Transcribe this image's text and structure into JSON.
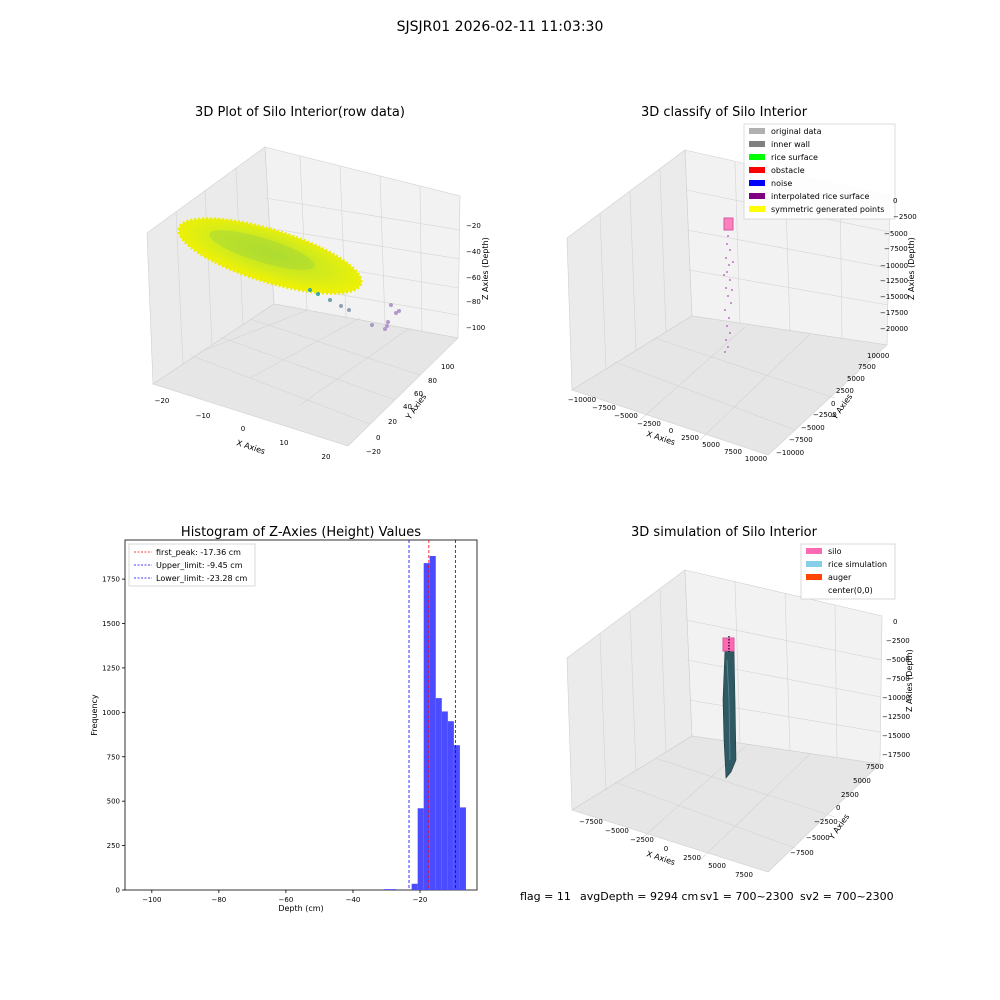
{
  "suptitle": "SJSJR01 2026-02-11 11:03:30",
  "footer": {
    "flag": "flag = 11",
    "avg": "avgDepth = 9294 cm",
    "sv1": "sv1 = 700~2300",
    "sv2": "sv2 = 700~2300"
  },
  "panels": {
    "raw": {
      "title": "3D Plot of Silo Interior(row data)",
      "xlabel": "X Axies",
      "ylabel": "Y Axies",
      "zlabel": "Z Axies (Depth)",
      "xticks": [
        "−20",
        "−10",
        "0",
        "10",
        "20"
      ],
      "yticks": [
        "−20",
        "0",
        "20",
        "40",
        "60",
        "80",
        "100"
      ],
      "zticks": [
        "−20",
        "−40",
        "−60",
        "−80",
        "−100"
      ]
    },
    "classify": {
      "title": "3D classify of Silo Interior",
      "xlabel": "X Axies",
      "ylabel": "Y Axies",
      "zlabel": "Z Axies (Depth)",
      "xticks": [
        "−10000",
        "−7500",
        "−5000",
        "−2500",
        "0",
        "2500",
        "5000",
        "7500",
        "10000"
      ],
      "yticks": [
        "−10000",
        "−7500",
        "−5000",
        "−2500",
        "0",
        "2500",
        "5000",
        "7500",
        "10000"
      ],
      "zticks": [
        "0",
        "−2500",
        "−5000",
        "−7500",
        "−10000",
        "−12500",
        "−15000",
        "−17500",
        "−20000"
      ],
      "legend": [
        {
          "label": "original data",
          "color": "#b0b0b0"
        },
        {
          "label": "inner wall",
          "color": "#808080"
        },
        {
          "label": "rice surface",
          "color": "#00ff00"
        },
        {
          "label": "obstacle",
          "color": "#ff0000"
        },
        {
          "label": "noise",
          "color": "#0000ff"
        },
        {
          "label": "interpolated rice surface",
          "color": "#800080"
        },
        {
          "label": "symmetric generated points",
          "color": "#ffff00"
        }
      ]
    },
    "histogram": {
      "title": "Histogram of Z-Axies (Height) Values",
      "xlabel": "Depth (cm)",
      "ylabel": "Frequency",
      "legend": [
        {
          "label": "first_peak: -17.36 cm",
          "color": "#ff0000"
        },
        {
          "label": "Upper_limit: -9.45 cm",
          "color": "#0000ff"
        },
        {
          "label": "Lower_limit: -23.28 cm",
          "color": "#0000ff"
        }
      ]
    },
    "simulation": {
      "title": "3D simulation of Silo Interior",
      "xlabel": "X Axies",
      "ylabel": "Y Axies",
      "zlabel": "Z Axies (Depth)",
      "xticks": [
        "−7500",
        "−5000",
        "−2500",
        "0",
        "2500",
        "5000",
        "7500"
      ],
      "yticks": [
        "−7500",
        "−5000",
        "−2500",
        "0",
        "2500",
        "5000",
        "7500"
      ],
      "zticks": [
        "0",
        "−2500",
        "−5000",
        "−7500",
        "−10000",
        "−12500",
        "−15000",
        "−17500"
      ],
      "legend": [
        {
          "label": "silo",
          "color": "#ff69b4"
        },
        {
          "label": "rice simulation",
          "color": "#87ceeb"
        },
        {
          "label": "auger",
          "color": "#ff4500"
        },
        {
          "label": "center(0,0)",
          "color": ""
        }
      ]
    }
  },
  "chart_data": {
    "type": "bar",
    "title": "Histogram of Z-Axies (Height) Values",
    "xlabel": "Depth (cm)",
    "ylabel": "Frequency",
    "xlim": [
      -108,
      -3
    ],
    "ylim": [
      0,
      1970
    ],
    "xticks": [
      -100,
      -80,
      -60,
      -40,
      -20
    ],
    "yticks": [
      0,
      250,
      500,
      750,
      1000,
      1250,
      1500,
      1750
    ],
    "bin_width": 1.8,
    "bins": [
      {
        "left": -30.7,
        "value": 5
      },
      {
        "left": -28.9,
        "value": 5
      },
      {
        "left": -22.5,
        "value": 35
      },
      {
        "left": -20.7,
        "value": 460
      },
      {
        "left": -18.9,
        "value": 1840
      },
      {
        "left": -17.1,
        "value": 1880
      },
      {
        "left": -15.3,
        "value": 1080
      },
      {
        "left": -13.5,
        "value": 1005
      },
      {
        "left": -11.7,
        "value": 950
      },
      {
        "left": -9.9,
        "value": 815
      },
      {
        "left": -8.1,
        "value": 465
      }
    ],
    "bar_color": "#4b4bff",
    "vlines": [
      {
        "label": "first_peak: -17.36 cm",
        "x": -17.36,
        "color": "#ff0000"
      },
      {
        "label": "Upper_limit: -9.45 cm",
        "x": -9.45,
        "color": "#0000ff"
      },
      {
        "label": "Lower_limit: -23.28 cm",
        "x": -23.28,
        "color": "#0000ff"
      }
    ],
    "legend": "top-left"
  }
}
